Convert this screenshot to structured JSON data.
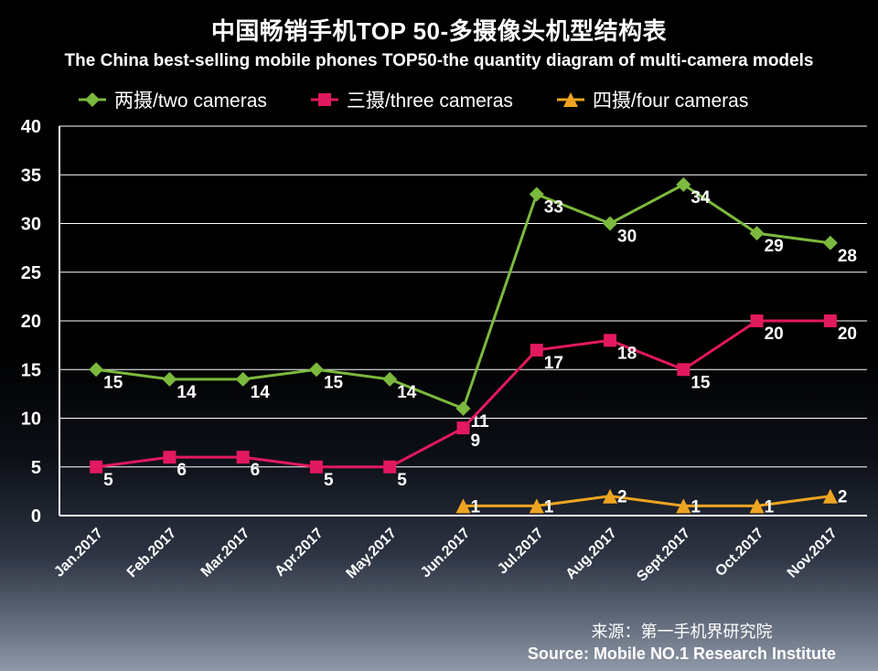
{
  "title": "中国畅销手机TOP 50-多摄像头机型结构表",
  "subtitle": "The China best-selling mobile phones TOP50-the quantity diagram of multi-camera models",
  "source": {
    "line1": "来源：第一手机界研究院",
    "line2": "Source: Mobile NO.1 Research Institute"
  },
  "chart_data": {
    "type": "line",
    "title": "中国畅销手机TOP 50-多摄像头机型结构表",
    "subtitle": "The China best-selling mobile phones TOP50-the quantity diagram of multi-camera models",
    "categories": [
      "Jan.2017",
      "Feb.2017",
      "Mar.2017",
      "Apr.2017",
      "May.2017",
      "Jun.2017",
      "Jul.2017",
      "Aug.2017",
      "Sept.2017",
      "Oct.2017",
      "Nov.2017"
    ],
    "yticks": [
      0,
      5,
      10,
      15,
      20,
      25,
      30,
      35,
      40
    ],
    "ylim": [
      0,
      40
    ],
    "grid": true,
    "legend_position": "top",
    "background": "#000000",
    "series": [
      {
        "name": "两摄/two cameras",
        "marker": "diamond",
        "color": "#7cb93e",
        "values": [
          15,
          14,
          14,
          15,
          14,
          11,
          33,
          30,
          34,
          29,
          28
        ]
      },
      {
        "name": "三摄/three cameras",
        "marker": "square",
        "color": "#e2195f",
        "values": [
          5,
          6,
          6,
          5,
          5,
          9,
          17,
          18,
          15,
          20,
          20
        ]
      },
      {
        "name": "四摄/four cameras",
        "marker": "triangle",
        "color": "#eda421",
        "values": [
          null,
          null,
          null,
          null,
          null,
          1,
          1,
          2,
          1,
          1,
          2
        ]
      }
    ]
  }
}
